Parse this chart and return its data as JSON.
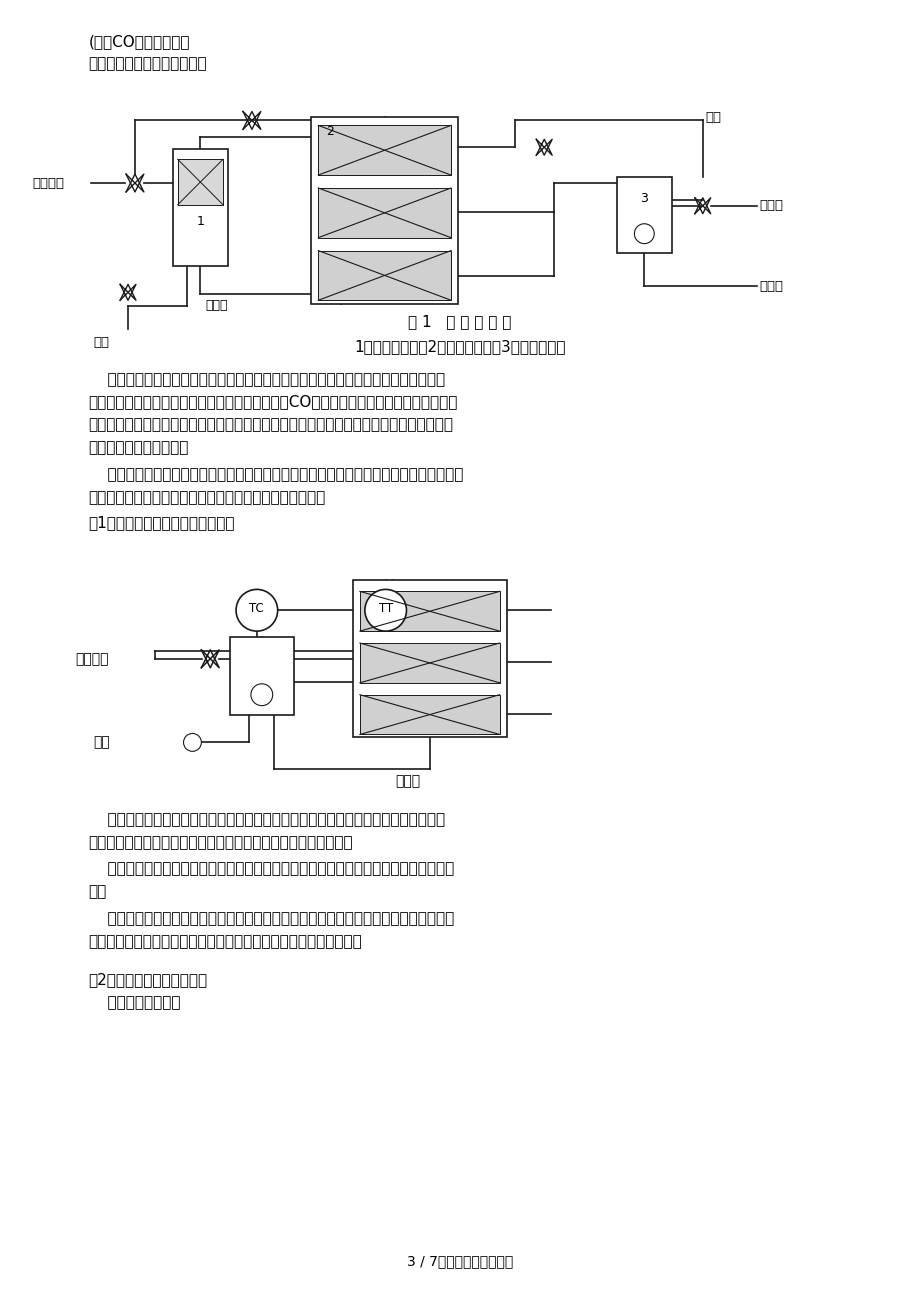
{
  "bg_color": "#ffffff",
  "page_width": 9.2,
  "page_height": 13.02,
  "text_color": "#000000",
  "font_family": "DejaVu Sans",
  "heading1": "(三）CO变换工段控制",
  "heading1_intro": "工艺简介：工艺流程图如下：",
  "fig1_caption": "图 1   工 艺 流 程 图",
  "fig1_sub": "1－中温换热器；2－中温变换炉；3－三段换热器",
  "para1_lines": [
    "    中温变换护的正常操作应该是将各段催化剂的温度控制在适宜的范围内，以充分发挥",
    "催化剂的活性。同时用最低的蒸汽消耗实现最高的CO变换率。影响中变炉催化剂床层温度",
    "变化的因素很多，如蒸汽的加入量、蒸汽的温度、进入催化剂前反应气体的温度、反应气体",
    "的组成以及生产负荷等。"
  ],
  "para2_lines": [
    "    该工段主要的控制系统主要有：中变炉入口温度定值控制，入中变护蒸汽流量定值控制，",
    "入中变沪中段蒸汽流量定值控制，中变炉下段温度控制等。"
  ],
  "heading2": "（1）中变炉人口温度定值控制系统",
  "para3_lines": [
    "    该系统是通过控制中变炉的入口温度来稳定上段催化剂的温度。选中变炉入口气体的",
    "温度作为被控变量，操作变量为中温换热器的半水煮气副线流量。"
  ],
  "para4_lines": [
    "    其主要干扰因素有：半水煮气流量，半水煮气温度，蒸汽流量，蒸汽温度，变换气温度",
    "等。"
  ],
  "para5_lines": [
    "    在这个系统中，中变炉人口温度是根据生产要求由人工设定，当受到干扰使该温度偏离",
    "设定值时，通过改变中温换热器副线流量来维持其入口温度的稳定。"
  ],
  "heading3": "（2）入炉蒸汽流量定值控制",
  "heading3_intro": "    控制流程图如下：",
  "footer": "3 / 7文档可自由编辑打印",
  "label_banshui": "半水煮气",
  "label_zhengqi_top": "蒸汽",
  "label_bianhuan_d1": "变换气",
  "label_zhengqi_bot": "蒸汽",
  "label_lengning": "冷凝水",
  "label_lengwu": "冷物料",
  "label_banshui_d2": "半水煮气",
  "label_zhengqi_d2": "蒸汽",
  "label_bianhuan_d2": "变换气"
}
